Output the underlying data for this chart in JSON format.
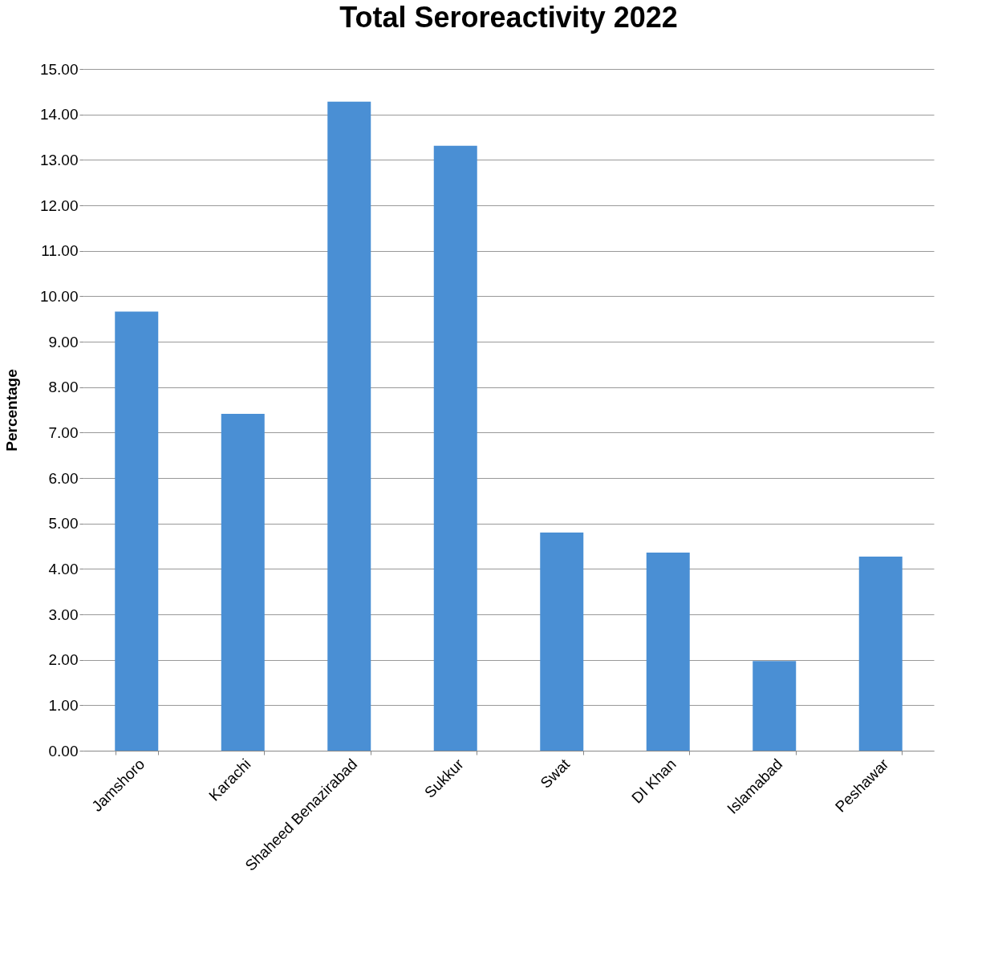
{
  "chart_data": {
    "type": "bar",
    "title": "Total Seroreactivity 2022",
    "ylabel": "Percentage",
    "categories": [
      "Jamshoro",
      "Karachi",
      "Shaheed Benazirabad",
      "Sukkur",
      "Swat",
      "DI Khan",
      "Islamabad",
      "Peshawar"
    ],
    "values": [
      9.66,
      7.41,
      14.28,
      13.31,
      4.8,
      4.36,
      1.97,
      4.27
    ],
    "color": "#4a8fd4",
    "ylim": [
      0,
      15
    ],
    "yticks": [
      {
        "value": 0,
        "label": "0.00"
      },
      {
        "value": 1,
        "label": "1.00"
      },
      {
        "value": 2,
        "label": "2.00"
      },
      {
        "value": 3,
        "label": "3.00"
      },
      {
        "value": 4,
        "label": "4.00"
      },
      {
        "value": 5,
        "label": "5.00"
      },
      {
        "value": 6,
        "label": "6.00"
      },
      {
        "value": 7,
        "label": "7.00"
      },
      {
        "value": 8,
        "label": "8.00"
      },
      {
        "value": 9,
        "label": "9.00"
      },
      {
        "value": 10,
        "label": "10.00"
      },
      {
        "value": 11,
        "label": "11.00"
      },
      {
        "value": 12,
        "label": "12.00"
      },
      {
        "value": 13,
        "label": "13.00"
      },
      {
        "value": 14,
        "label": "14.00"
      },
      {
        "value": 15,
        "label": "15.00"
      }
    ],
    "grid": "y"
  }
}
